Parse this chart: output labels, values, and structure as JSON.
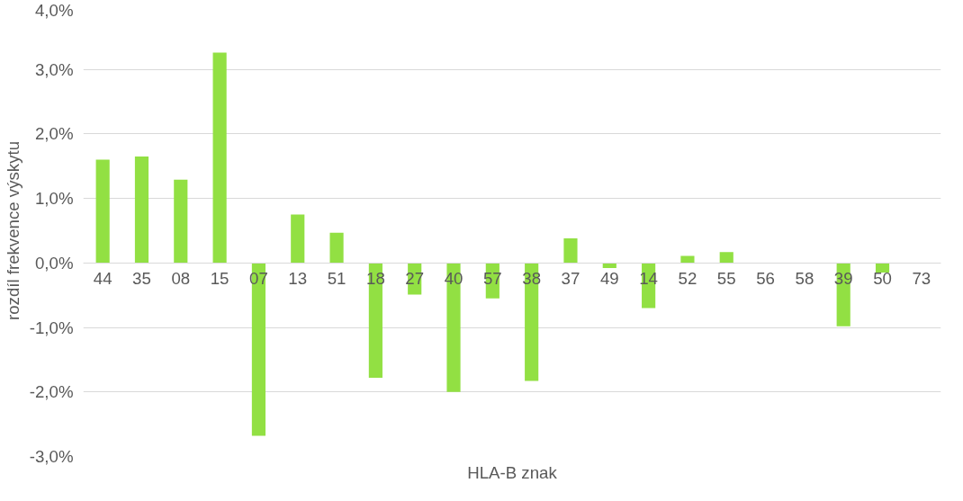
{
  "chart_data": {
    "type": "bar",
    "xlabel": "HLA-B znak",
    "ylabel": "rozdíl frekvence výskytu",
    "categories": [
      "44",
      "35",
      "08",
      "15",
      "07",
      "13",
      "51",
      "18",
      "27",
      "40",
      "57",
      "38",
      "37",
      "49",
      "14",
      "52",
      "55",
      "56",
      "58",
      "39",
      "50",
      "73"
    ],
    "series": [
      {
        "color": "#92e043",
        "values": [
          1.6,
          1.65,
          1.29,
          3.26,
          -2.68,
          0.75,
          0.47,
          -1.78,
          -0.49,
          -2.0,
          -0.55,
          -1.83,
          0.38,
          -0.08,
          -0.7,
          0.11,
          0.17,
          0,
          0,
          -0.98,
          -0.15,
          0
        ]
      }
    ],
    "ylim": [
      -3.0,
      4.0
    ],
    "yticks": [
      {
        "value": -3,
        "label": "-3,0%"
      },
      {
        "value": -2,
        "label": "-2,0%"
      },
      {
        "value": -1,
        "label": "-1,0%"
      },
      {
        "value": 0,
        "label": "0,0%"
      },
      {
        "value": 1,
        "label": "1,0%"
      },
      {
        "value": 2,
        "label": "2,0%"
      },
      {
        "value": 3,
        "label": "3,0%"
      },
      {
        "value": 4,
        "label": "4,0%"
      }
    ],
    "grid": "y"
  }
}
